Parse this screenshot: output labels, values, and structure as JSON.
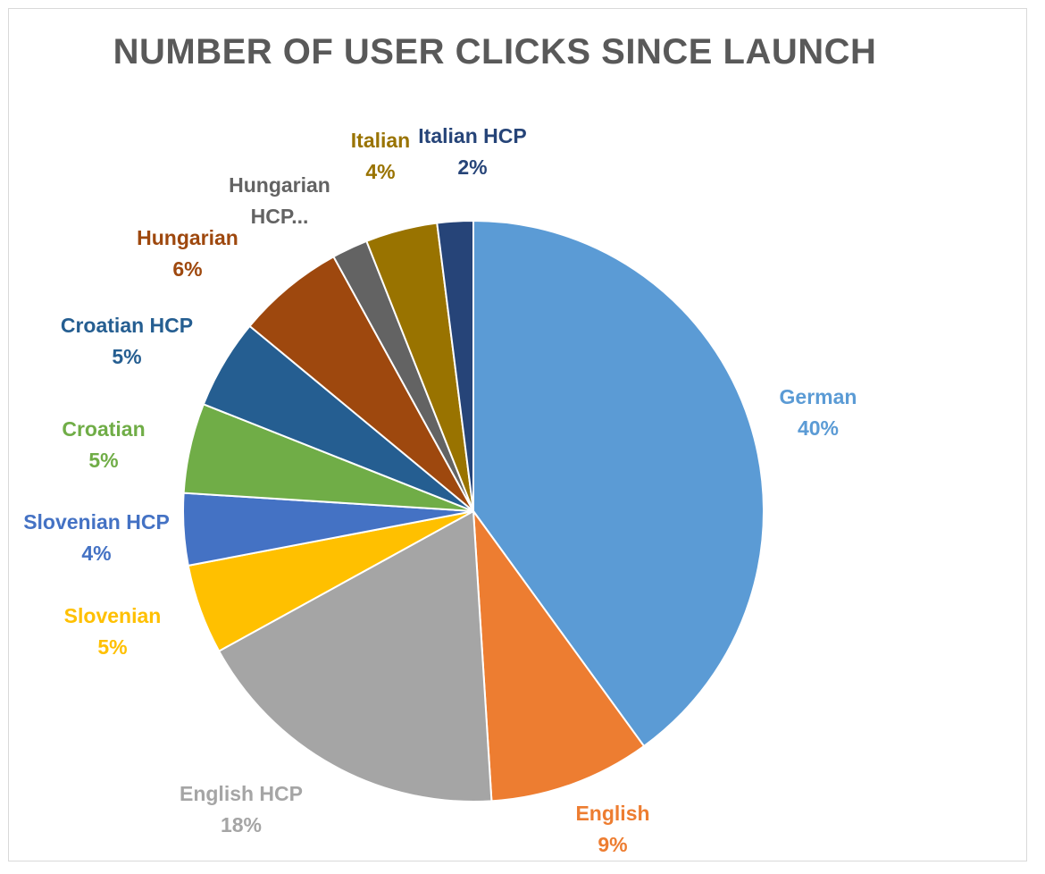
{
  "chart_data": {
    "type": "pie",
    "title": "NUMBER OF USER CLICKS SINCE LAUNCH",
    "slices": [
      {
        "name": "German",
        "label_lines": [
          "German"
        ],
        "value": 40,
        "percent_label": "40%",
        "color": "#5b9bd5"
      },
      {
        "name": "English",
        "label_lines": [
          "English"
        ],
        "value": 9,
        "percent_label": "9%",
        "color": "#ed7d31"
      },
      {
        "name": "English HCP",
        "label_lines": [
          "English HCP"
        ],
        "value": 18,
        "percent_label": "18%",
        "color": "#a5a5a5"
      },
      {
        "name": "Slovenian",
        "label_lines": [
          "Slovenian"
        ],
        "value": 5,
        "percent_label": "5%",
        "color": "#ffc000"
      },
      {
        "name": "Slovenian HCP",
        "label_lines": [
          "Slovenian HCP"
        ],
        "value": 4,
        "percent_label": "4%",
        "color": "#4472c4"
      },
      {
        "name": "Croatian",
        "label_lines": [
          "Croatian"
        ],
        "value": 5,
        "percent_label": "5%",
        "color": "#70ad47"
      },
      {
        "name": "Croatian HCP",
        "label_lines": [
          "Croatian HCP"
        ],
        "value": 5,
        "percent_label": "5%",
        "color": "#255e91"
      },
      {
        "name": "Hungarian",
        "label_lines": [
          "Hungarian"
        ],
        "value": 6,
        "percent_label": "6%",
        "color": "#9e480e"
      },
      {
        "name": "Hungarian HCP",
        "label_lines": [
          "Hungarian",
          "HCP..."
        ],
        "value": 2,
        "percent_label": "",
        "color": "#636363"
      },
      {
        "name": "Italian",
        "label_lines": [
          "Italian"
        ],
        "value": 4,
        "percent_label": "4%",
        "color": "#997300"
      },
      {
        "name": "Italian HCP",
        "label_lines": [
          "Italian HCP"
        ],
        "value": 2,
        "percent_label": "2%",
        "color": "#264478"
      }
    ],
    "start_angle": "12 o'clock",
    "direction": "clockwise",
    "legend": "none",
    "data_labels": "outside"
  }
}
